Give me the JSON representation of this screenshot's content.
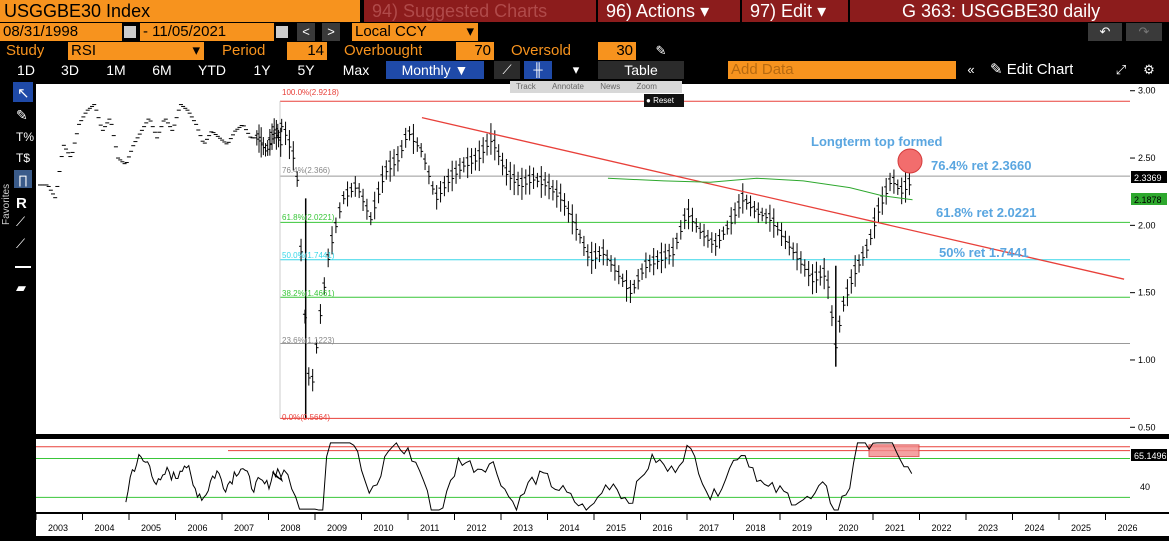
{
  "header": {
    "ticker": "USGGBE30 Index",
    "suggested": "94) Suggested Charts",
    "actions": "96) Actions",
    "edit": "97) Edit",
    "chart_id": "G 363: USGGBE30 daily"
  },
  "range": {
    "start": "08/31/1998",
    "end": "11/05/2021",
    "currency": "Local CCY"
  },
  "study": {
    "label": "Study",
    "name": "RSI",
    "period_label": "Period",
    "period": "14",
    "overbought_label": "Overbought",
    "overbought": "70",
    "oversold_label": "Oversold",
    "oversold": "30"
  },
  "toolbar": {
    "timeframes": [
      "1D",
      "3D",
      "1M",
      "6M",
      "YTD",
      "1Y",
      "5Y",
      "Max"
    ],
    "frequency": "Monthly ▼",
    "table": "Table",
    "add_data": "Add Data",
    "edit_chart": "Edit Chart"
  },
  "popup": {
    "items": [
      "Track",
      "Annotate",
      "News",
      "Zoom"
    ],
    "reset": "Reset"
  },
  "side": {
    "favorites": "Favorites"
  },
  "annotations": {
    "top_formed": "Longterm top formed",
    "ret764": "76.4% ret 2.3660",
    "ret618": "61.8% ret 2.0221",
    "ret50": "50% ret 1.7441"
  },
  "fib_labels": {
    "f100": "100.0%(2.9218)",
    "f764": "76.4%(2.366)",
    "f618": "61.8%(2.0221)",
    "f50": "50.0%(1.7441)",
    "f382": "38.2%(1.4661)",
    "f236": "23.6%(1.1223)",
    "f0": "0.0%(0.5664)"
  },
  "chart_data": {
    "type": "line",
    "x": [
      1999.0,
      1999.3,
      1999.6,
      1999.9,
      2000.2,
      2000.5,
      2000.8,
      2001.1,
      2001.4,
      2001.7,
      2002.0,
      2002.3,
      2002.6,
      2002.9,
      2003.2,
      2003.5,
      2003.8,
      2004.1,
      2004.4,
      2004.7,
      2005.0,
      2005.3,
      2005.6,
      2005.9,
      2006.2,
      2006.5,
      2006.8,
      2007.1,
      2007.4,
      2007.7,
      2008.0,
      2008.3,
      2008.6,
      2008.75,
      2008.9,
      2009.1,
      2009.3,
      2009.6,
      2009.9,
      2010.2,
      2010.5,
      2010.8,
      2011.0,
      2011.3,
      2011.6,
      2011.9,
      2012.2,
      2012.5,
      2012.8,
      2013.1,
      2013.4,
      2013.7,
      2014.0,
      2014.3,
      2014.6,
      2014.9,
      2015.2,
      2015.5,
      2015.8,
      2016.1,
      2016.4,
      2016.7,
      2017.0,
      2017.3,
      2017.6,
      2017.9,
      2018.2,
      2018.5,
      2018.8,
      2019.1,
      2019.4,
      2019.7,
      2020.0,
      2020.2,
      2020.35,
      2020.6,
      2020.9,
      2021.1,
      2021.4,
      2021.6,
      2021.85
    ],
    "values": [
      2.3,
      2.2,
      2.6,
      2.5,
      2.75,
      2.85,
      2.9,
      2.7,
      2.8,
      2.5,
      2.45,
      2.6,
      2.7,
      2.8,
      2.65,
      2.8,
      2.7,
      2.9,
      2.85,
      2.75,
      2.6,
      2.7,
      2.65,
      2.6,
      2.7,
      2.75,
      2.65,
      2.65,
      2.55,
      2.7,
      2.6,
      2.75,
      2.45,
      1.5,
      0.7,
      1.3,
      1.8,
      2.2,
      2.3,
      2.05,
      2.4,
      2.5,
      2.7,
      2.55,
      2.2,
      2.35,
      2.45,
      2.5,
      2.65,
      2.4,
      2.3,
      2.35,
      2.3,
      2.2,
      2.0,
      1.75,
      1.8,
      1.65,
      1.5,
      1.7,
      1.75,
      1.8,
      2.1,
      1.95,
      1.85,
      2.0,
      2.2,
      2.1,
      2.05,
      1.9,
      1.75,
      1.6,
      1.65,
      1.1,
      1.4,
      1.65,
      1.85,
      2.1,
      2.35,
      2.25,
      2.34
    ],
    "yticks": [
      3.0,
      2.5,
      2.0,
      1.5,
      1.0,
      0.5
    ],
    "ylim": [
      0.45,
      3.05
    ],
    "xticks": [
      "2003",
      "2004",
      "2005",
      "2006",
      "2007",
      "2008",
      "2009",
      "2010",
      "2011",
      "2012",
      "2013",
      "2014",
      "2015",
      "2016",
      "2017",
      "2018",
      "2019",
      "2020",
      "2021",
      "2022",
      "2023",
      "2024",
      "2025",
      "2026"
    ],
    "last_price": "2.3369",
    "ma_last": "2.1878",
    "rsi": {
      "last": "65.1496",
      "yticks": [
        "40"
      ],
      "overbought": 70,
      "oversold": 30
    }
  },
  "colors": {
    "bbg_orange": "#f7931e",
    "bbg_maroon": "#8c1c1c",
    "trendline": "#e8403a",
    "fib_green": "#39c639",
    "fib_cyan": "#36d6e8",
    "annotation_blue": "#5aa6e0"
  }
}
